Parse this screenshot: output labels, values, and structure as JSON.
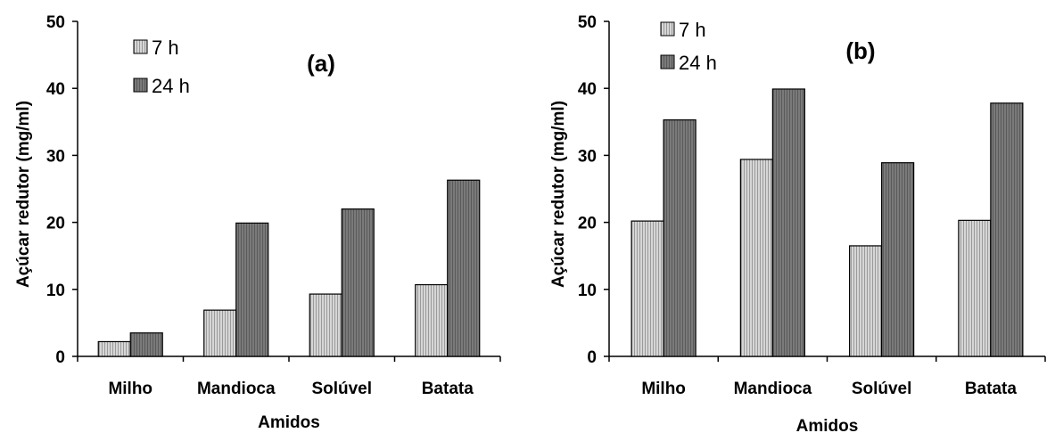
{
  "chart_data": [
    {
      "type": "bar",
      "title": "(a)",
      "xlabel": "Amidos",
      "ylabel": "Açúcar redutor (mg/ml)",
      "categories": [
        "Milho",
        "Mandioca",
        "Solúvel",
        "Batata"
      ],
      "ylim": [
        0,
        50
      ],
      "yticks": [
        0,
        10,
        20,
        30,
        40,
        50
      ],
      "legend_position": "top-left",
      "series": [
        {
          "name": "7 h",
          "color": "#c8c8c8",
          "values": [
            2.2,
            6.9,
            9.3,
            10.7
          ]
        },
        {
          "name": "24 h",
          "color": "#777777",
          "values": [
            3.5,
            19.9,
            22.0,
            26.3
          ]
        }
      ]
    },
    {
      "type": "bar",
      "title": "(b)",
      "xlabel": "Amidos",
      "ylabel": "Açúcar redutor (mg/ml)",
      "categories": [
        "Milho",
        "Mandioca",
        "Solúvel",
        "Batata"
      ],
      "ylim": [
        0,
        50
      ],
      "yticks": [
        0,
        10,
        20,
        30,
        40,
        50
      ],
      "legend_position": "top-left",
      "series": [
        {
          "name": "7 h",
          "color": "#c8c8c8",
          "values": [
            20.2,
            29.4,
            16.5,
            20.3
          ]
        },
        {
          "name": "24 h",
          "color": "#777777",
          "values": [
            35.3,
            39.9,
            28.9,
            37.8
          ]
        }
      ]
    }
  ]
}
